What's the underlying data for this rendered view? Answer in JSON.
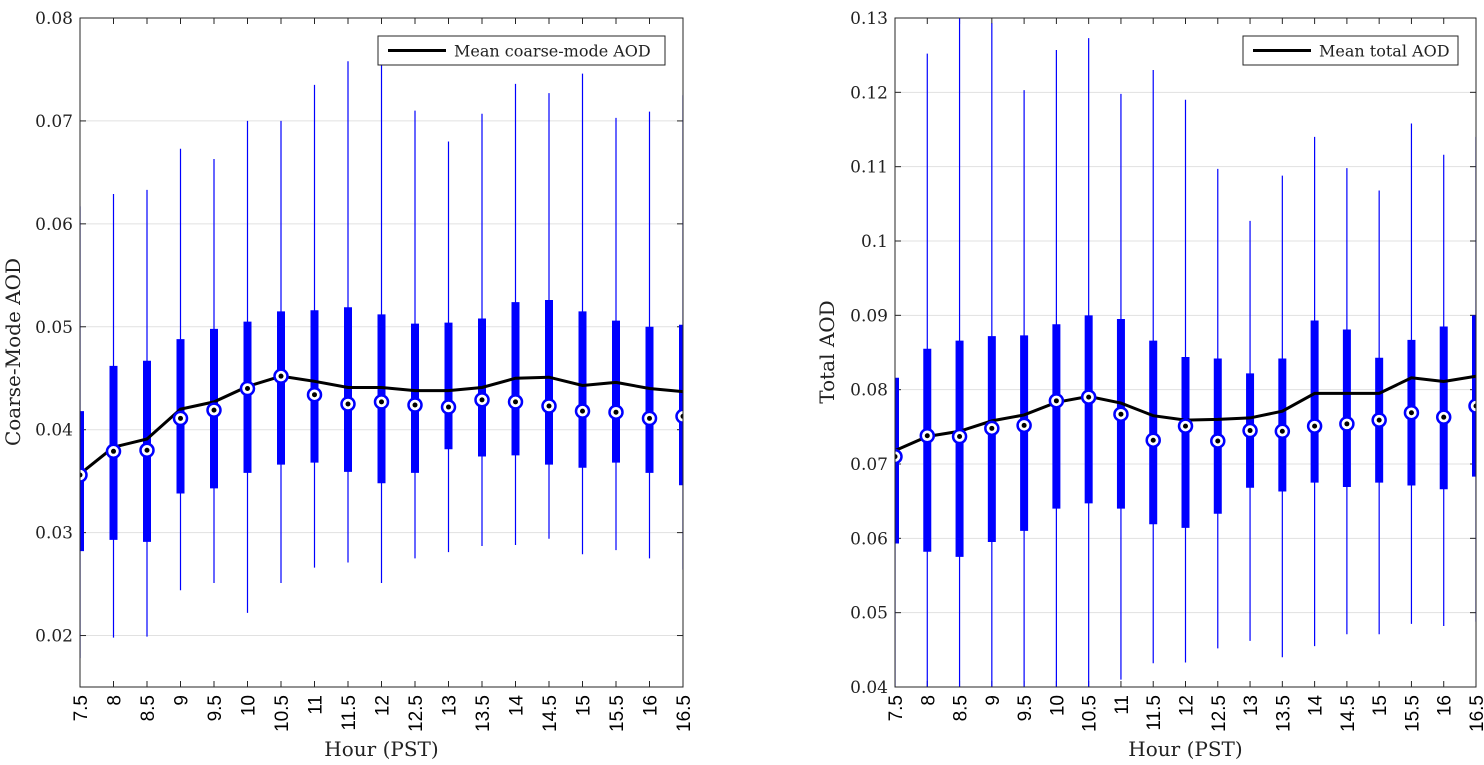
{
  "chart_data": [
    {
      "type": "box",
      "xlabel": "Hour (PST)",
      "ylabel": "Coarse-Mode AOD",
      "categories": [
        "7.5",
        "8",
        "8.5",
        "9",
        "9.5",
        "10",
        "10.5",
        "11",
        "11.5",
        "12",
        "12.5",
        "13",
        "13.5",
        "14",
        "14.5",
        "15",
        "15.5",
        "16",
        "16.5"
      ],
      "ylim": [
        0.015,
        0.08
      ],
      "yticks": [
        "0.02",
        "0.03",
        "0.04",
        "0.05",
        "0.06",
        "0.07",
        "0.08"
      ],
      "grid": "horizontal",
      "legend": {
        "position": "top-right",
        "entries": [
          "Mean coarse-mode AOD"
        ]
      },
      "colors": {
        "box": "#0000ff",
        "mean_line": "#000000"
      },
      "whisker_low": [
        0.0178,
        0.0198,
        0.0199,
        0.0244,
        0.0251,
        0.0222,
        0.0251,
        0.0266,
        0.0271,
        0.0251,
        0.0275,
        0.0281,
        0.0287,
        0.0288,
        0.0294,
        0.0279,
        0.0283,
        0.0275,
        0.0264
      ],
      "q1": [
        0.0282,
        0.0293,
        0.0291,
        0.0338,
        0.0343,
        0.0358,
        0.0366,
        0.0368,
        0.0359,
        0.0348,
        0.0358,
        0.0381,
        0.0374,
        0.0375,
        0.0366,
        0.0363,
        0.0368,
        0.0358,
        0.0346
      ],
      "median": [
        0.0356,
        0.0379,
        0.038,
        0.0411,
        0.0419,
        0.044,
        0.0452,
        0.0434,
        0.0425,
        0.0427,
        0.0424,
        0.0422,
        0.0429,
        0.0427,
        0.0423,
        0.0418,
        0.0417,
        0.0411,
        0.0413
      ],
      "q3": [
        0.0418,
        0.0462,
        0.0467,
        0.0488,
        0.0498,
        0.0505,
        0.0515,
        0.0516,
        0.0519,
        0.0512,
        0.0503,
        0.0504,
        0.0508,
        0.0524,
        0.0526,
        0.0515,
        0.0506,
        0.05,
        0.0502
      ],
      "whisker_high": [
        0.0617,
        0.0629,
        0.0633,
        0.0673,
        0.0663,
        0.07,
        0.07,
        0.0735,
        0.0758,
        0.0762,
        0.071,
        0.068,
        0.0707,
        0.0736,
        0.0727,
        0.0746,
        0.0703,
        0.0709,
        0.0725
      ],
      "series": [
        {
          "name": "Mean coarse-mode AOD",
          "values": [
            0.0357,
            0.0383,
            0.0391,
            0.042,
            0.0427,
            0.0442,
            0.0452,
            0.0447,
            0.0441,
            0.0441,
            0.0438,
            0.0438,
            0.0441,
            0.045,
            0.0451,
            0.0443,
            0.0446,
            0.044,
            0.0437
          ]
        }
      ]
    },
    {
      "type": "box",
      "xlabel": "Hour (PST)",
      "ylabel": "Total AOD",
      "categories": [
        "7.5",
        "8",
        "8.5",
        "9",
        "9.5",
        "10",
        "10.5",
        "11",
        "11.5",
        "12",
        "12.5",
        "13",
        "13.5",
        "14",
        "14.5",
        "15",
        "15.5",
        "16",
        "16.5"
      ],
      "ylim": [
        0.04,
        0.13
      ],
      "yticks": [
        "0.04",
        "0.05",
        "0.06",
        "0.07",
        "0.08",
        "0.09",
        "0.1",
        "0.11",
        "0.12",
        "0.13"
      ],
      "grid": "horizontal",
      "legend": {
        "position": "top-right",
        "entries": [
          "Mean total AOD"
        ]
      },
      "colors": {
        "box": "#0000ff",
        "mean_line": "#000000"
      },
      "whisker_low": [
        0.04,
        0.04,
        0.04,
        0.04,
        0.04,
        0.04,
        0.04,
        0.041,
        0.0432,
        0.0433,
        0.0452,
        0.0462,
        0.044,
        0.0455,
        0.0471,
        0.0471,
        0.0485,
        0.0482,
        0.0488
      ],
      "q1": [
        0.0593,
        0.0582,
        0.0575,
        0.0595,
        0.061,
        0.064,
        0.0647,
        0.064,
        0.0619,
        0.0614,
        0.0633,
        0.0668,
        0.0663,
        0.0675,
        0.0669,
        0.0675,
        0.0671,
        0.0666,
        0.0683
      ],
      "median": [
        0.071,
        0.0738,
        0.0737,
        0.0748,
        0.0752,
        0.0785,
        0.079,
        0.0767,
        0.0732,
        0.0751,
        0.0731,
        0.0745,
        0.0744,
        0.0751,
        0.0754,
        0.0759,
        0.0769,
        0.0763,
        0.0778
      ],
      "q3": [
        0.0816,
        0.0855,
        0.0866,
        0.0872,
        0.0873,
        0.0888,
        0.09,
        0.0895,
        0.0866,
        0.0844,
        0.0842,
        0.0822,
        0.0842,
        0.0893,
        0.0881,
        0.0843,
        0.0867,
        0.0885,
        0.09
      ],
      "whisker_high": [
        0.0816,
        0.1252,
        0.13,
        0.1293,
        0.1203,
        0.1257,
        0.1273,
        0.1198,
        0.123,
        0.119,
        0.1097,
        0.1027,
        0.1088,
        0.114,
        0.1098,
        0.1068,
        0.1158,
        0.1116,
        0.114
      ],
      "series": [
        {
          "name": "Mean total AOD",
          "values": [
            0.0718,
            0.0737,
            0.0744,
            0.0758,
            0.0766,
            0.0783,
            0.0791,
            0.0782,
            0.0765,
            0.0759,
            0.076,
            0.0762,
            0.0771,
            0.0795,
            0.0795,
            0.0795,
            0.0816,
            0.0811,
            0.0818
          ]
        }
      ]
    }
  ]
}
